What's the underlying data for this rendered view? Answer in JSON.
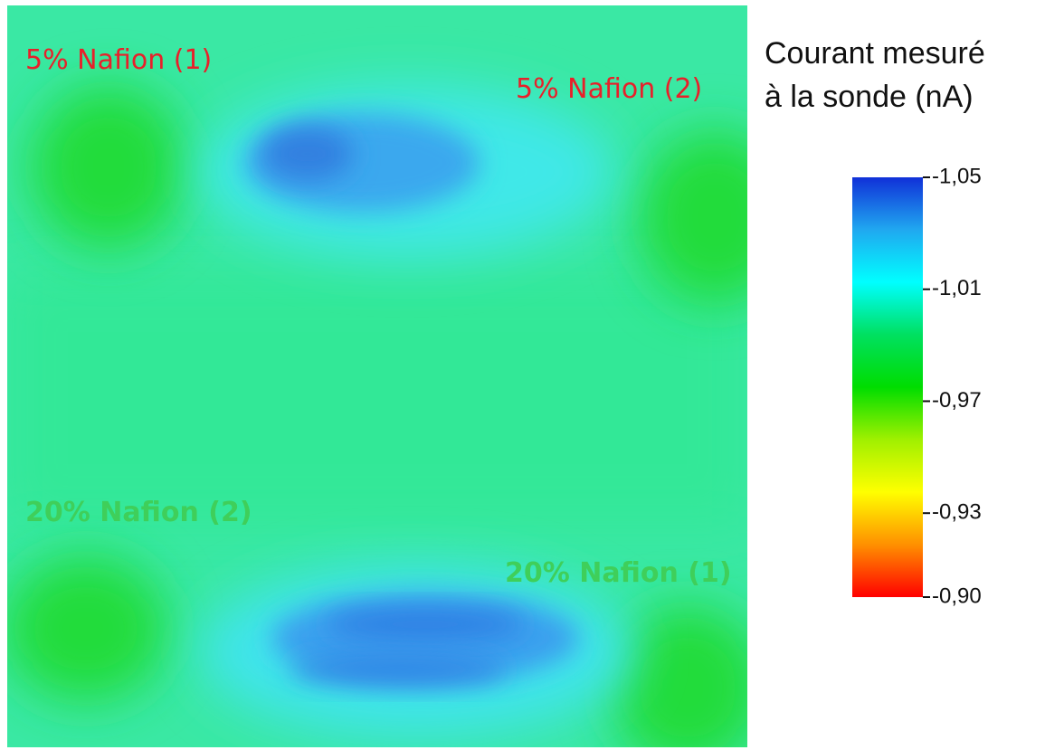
{
  "chart_data": {
    "type": "heatmap",
    "title_lines": [
      "Courant mesuré",
      "à la sonde (nA)"
    ],
    "annotations": [
      {
        "text": "5% Nafion (1)",
        "color": "#e8202a"
      },
      {
        "text": "5% Nafion (2)",
        "color": "#e8202a"
      },
      {
        "text": "20% Nafion (2)",
        "color": "#3fcf5a"
      },
      {
        "text": "20% Nafion (1)",
        "color": "#3fcf5a"
      }
    ],
    "colorbar": {
      "lim": [
        -1.05,
        -0.9
      ],
      "ticks": [
        {
          "value": -1.05,
          "label": "-1,05"
        },
        {
          "value": -1.01,
          "label": "-1,01"
        },
        {
          "value": -0.97,
          "label": "-0,97"
        },
        {
          "value": -0.93,
          "label": "-0,93"
        },
        {
          "value": -0.9,
          "label": "-0,90"
        }
      ],
      "colors": [
        "#1030d8",
        "#20a8f0",
        "#00ffff",
        "#00e060",
        "#00dd00",
        "#a0f000",
        "#ffff00",
        "#ff9000",
        "#ff0000"
      ]
    }
  }
}
